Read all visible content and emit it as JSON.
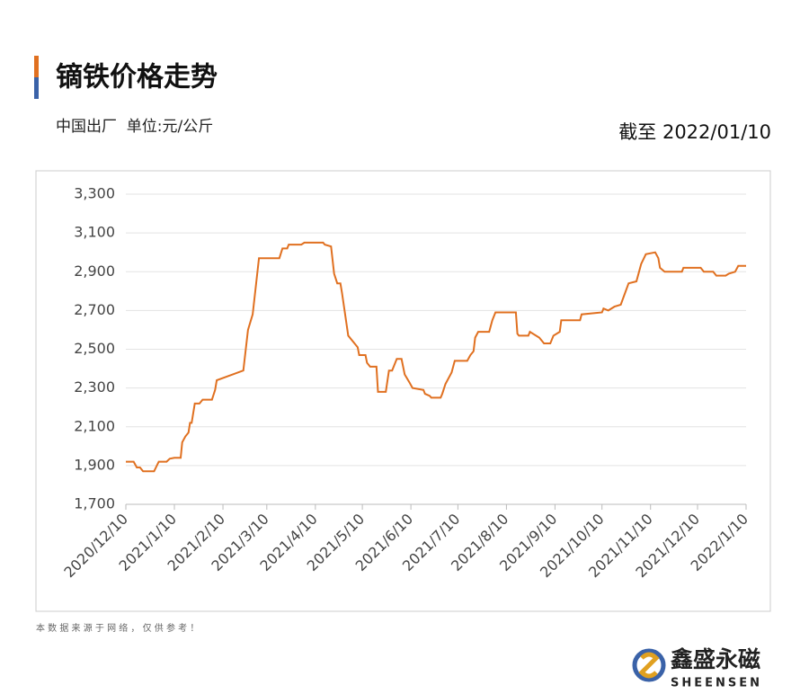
{
  "chart_data": {
    "type": "line",
    "title": "镝铁价格走势",
    "subtitle": "中国出厂  单位:元/公斤",
    "date_note": "截至 2022/01/10",
    "x": [
      "2020/12/10",
      "2020/12/15",
      "2020/12/17",
      "2020/12/19",
      "2020/12/21",
      "2020/12/28",
      "2020/12/31",
      "2021/1/5",
      "2021/1/7",
      "2021/1/10",
      "2021/1/14",
      "2021/1/15",
      "2021/1/17",
      "2021/1/19",
      "2021/1/20",
      "2021/1/21",
      "2021/1/23",
      "2021/1/26",
      "2021/1/28",
      "2021/2/3",
      "2021/2/5",
      "2021/2/6",
      "2021/2/23",
      "2021/2/26",
      "2021/3/1",
      "2021/3/5",
      "2021/3/18",
      "2021/3/20",
      "2021/3/23",
      "2021/3/24",
      "2021/4/1",
      "2021/4/3",
      "2021/4/15",
      "2021/4/16",
      "2021/4/20",
      "2021/4/22",
      "2021/4/24",
      "2021/4/26",
      "2021/4/27",
      "2021/5/1",
      "2021/5/7",
      "2021/5/8",
      "2021/5/12",
      "2021/5/13",
      "2021/5/15",
      "2021/5/19",
      "2021/5/20",
      "2021/5/25",
      "2021/5/27",
      "2021/5/29",
      "2021/6/1",
      "2021/6/4",
      "2021/6/6",
      "2021/6/9",
      "2021/6/11",
      "2021/6/18",
      "2021/6/19",
      "2021/6/22",
      "2021/6/23",
      "2021/6/29",
      "2021/6/30",
      "2021/7/2",
      "2021/7/6",
      "2021/7/8",
      "2021/7/16",
      "2021/7/18",
      "2021/7/20",
      "2021/7/21",
      "2021/7/23",
      "2021/7/30",
      "2021/8/1",
      "2021/8/3",
      "2021/8/16",
      "2021/8/17",
      "2021/8/18",
      "2021/8/24",
      "2021/8/25",
      "2021/8/31",
      "2021/9/3",
      "2021/9/7",
      "2021/9/9",
      "2021/9/13",
      "2021/9/14",
      "2021/9/26",
      "2021/9/27",
      "2021/10/10",
      "2021/10/11",
      "2021/10/14",
      "2021/10/18",
      "2021/10/22",
      "2021/10/27",
      "2021/11/1",
      "2021/11/4",
      "2021/11/7",
      "2021/11/13",
      "2021/11/15",
      "2021/11/16",
      "2021/11/19",
      "2021/11/30",
      "2021/12/1",
      "2021/12/12",
      "2021/12/14",
      "2021/12/20",
      "2021/12/22",
      "2021/12/28",
      "2021/12/30",
      "2022/1/3",
      "2022/1/5",
      "2022/1/10"
    ],
    "series": [
      {
        "name": "镝铁",
        "color": "#e07020",
        "values": [
          1920,
          1920,
          1890,
          1890,
          1870,
          1870,
          1920,
          1920,
          1935,
          1940,
          1940,
          2020,
          2050,
          2070,
          2120,
          2120,
          2220,
          2220,
          2240,
          2240,
          2290,
          2340,
          2390,
          2600,
          2680,
          2970,
          2970,
          3020,
          3020,
          3040,
          3040,
          3050,
          3050,
          3040,
          3030,
          2890,
          2840,
          2840,
          2790,
          2570,
          2510,
          2470,
          2470,
          2430,
          2410,
          2410,
          2280,
          2280,
          2390,
          2390,
          2450,
          2450,
          2370,
          2330,
          2300,
          2290,
          2270,
          2260,
          2250,
          2250,
          2270,
          2320,
          2380,
          2440,
          2440,
          2470,
          2490,
          2560,
          2590,
          2590,
          2650,
          2690,
          2690,
          2580,
          2570,
          2570,
          2590,
          2560,
          2530,
          2530,
          2570,
          2590,
          2650,
          2650,
          2680,
          2690,
          2710,
          2700,
          2720,
          2730,
          2840,
          2850,
          2940,
          2990,
          3000,
          2970,
          2920,
          2900,
          2900,
          2920,
          2920,
          2900,
          2900,
          2880,
          2880,
          2890,
          2900,
          2930,
          2930
        ]
      }
    ],
    "xlim": [
      "2020/12/10",
      "2022/1/10"
    ],
    "xticks": [
      "2020/12/10",
      "2021/1/10",
      "2021/2/10",
      "2021/3/10",
      "2021/4/10",
      "2021/5/10",
      "2021/6/10",
      "2021/7/10",
      "2021/8/10",
      "2021/9/10",
      "2021/10/10",
      "2021/11/10",
      "2021/12/10",
      "2022/1/10"
    ],
    "ylim": [
      1700,
      3300
    ],
    "yticks": [
      {
        "value": 1700,
        "label": "1,700"
      },
      {
        "value": 1900,
        "label": "1,900"
      },
      {
        "value": 2100,
        "label": "2,100"
      },
      {
        "value": 2300,
        "label": "2,300"
      },
      {
        "value": 2500,
        "label": "2,500"
      },
      {
        "value": 2700,
        "label": "2,700"
      },
      {
        "value": 2900,
        "label": "2,900"
      },
      {
        "value": 3100,
        "label": "3,100"
      },
      {
        "value": 3300,
        "label": "3,300"
      }
    ],
    "grid": true
  },
  "footer": {
    "note": "本 数 据 来 源 于 网 络 ， 仅 供 参 考 ！",
    "brand": "鑫盛永磁",
    "brand_en": "SHEENSEN"
  }
}
